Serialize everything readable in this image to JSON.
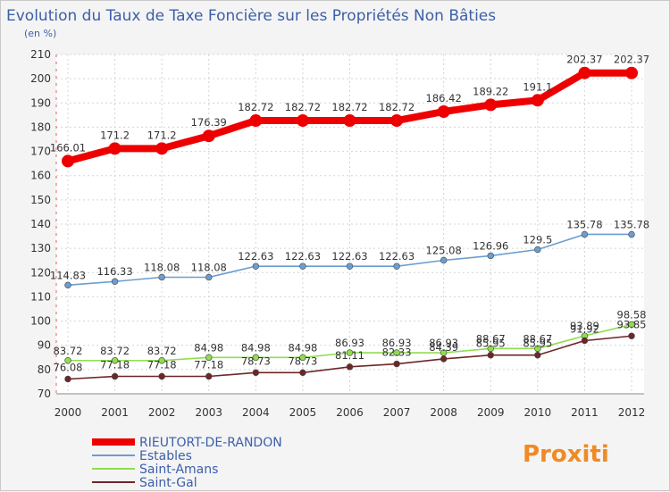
{
  "chart_data": {
    "type": "line",
    "title": "Evolution du Taux de Taxe Foncière sur les Propriétés Non Bâties",
    "unit": "(en %)",
    "x": [
      "2000",
      "2001",
      "2002",
      "2003",
      "2004",
      "2005",
      "2006",
      "2007",
      "2008",
      "2009",
      "2010",
      "2011",
      "2012"
    ],
    "ylim": [
      70,
      210
    ],
    "yticks": [
      "70",
      "80",
      "90",
      "100",
      "110",
      "120",
      "130",
      "140",
      "150",
      "160",
      "170",
      "180",
      "190",
      "200",
      "210"
    ],
    "series": [
      {
        "name": "RIEUTORT-DE-RANDON",
        "color": "#ee0000",
        "values": [
          166.01,
          171.2,
          171.2,
          176.39,
          182.72,
          182.72,
          182.72,
          182.72,
          186.42,
          189.22,
          191.1,
          202.37,
          202.37
        ],
        "labels": [
          "166.01",
          "171.2",
          "171.2",
          "176.39",
          "182.72",
          "182.72",
          "182.72",
          "182.72",
          "186.42",
          "189.22",
          "191.1",
          "202.37",
          "202.37"
        ]
      },
      {
        "name": "Estables",
        "color": "#6b9ed0",
        "values": [
          114.83,
          116.33,
          118.08,
          118.08,
          122.63,
          122.63,
          122.63,
          122.63,
          125.08,
          126.96,
          129.5,
          135.78,
          135.78
        ],
        "labels": [
          "114.83",
          "116.33",
          "118.08",
          "118.08",
          "122.63",
          "122.63",
          "122.63",
          "122.63",
          "125.08",
          "126.96",
          "129.5",
          "135.78",
          "135.78"
        ]
      },
      {
        "name": "Saint-Amans",
        "color": "#90dd50",
        "values": [
          83.72,
          83.72,
          83.72,
          84.98,
          84.98,
          84.98,
          86.93,
          86.93,
          86.93,
          88.67,
          88.67,
          93.89,
          98.58
        ],
        "labels": [
          "83.72",
          "83.72",
          "83.72",
          "84.98",
          "84.98",
          "84.98",
          "86.93",
          "86.93",
          "86.93",
          "88.67",
          "88.67",
          "93.89",
          "98.58"
        ]
      },
      {
        "name": "Saint-Gal",
        "color": "#6e2626",
        "values": [
          76.08,
          77.18,
          77.18,
          77.18,
          78.73,
          78.73,
          81.11,
          82.33,
          84.39,
          85.95,
          85.95,
          91.92,
          93.85
        ],
        "labels": [
          "76.08",
          "77.18",
          "77.18",
          "77.18",
          "78.73",
          "78.73",
          "81.11",
          "82.33",
          "84.39",
          "85.95",
          "85.95",
          "91.92",
          "93.85"
        ]
      }
    ]
  },
  "brand": "Proxiti"
}
